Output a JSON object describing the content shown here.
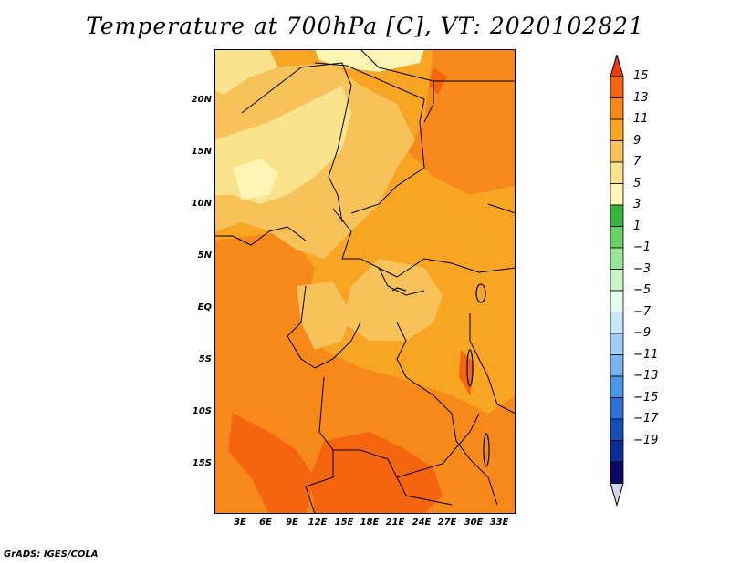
{
  "title": "Temperature at 700hPa [C], VT: 2020102821",
  "footer": "GrADS: IGES/COLA",
  "map": {
    "lat_labels": [
      "20N",
      "15N",
      "10N",
      "5N",
      "EQ",
      "5S",
      "10S",
      "15S"
    ],
    "lon_labels": [
      "3E",
      "6E",
      "9E",
      "12E",
      "15E",
      "18E",
      "21E",
      "24E",
      "27E",
      "30E",
      "33E"
    ],
    "lat_values": [
      20,
      15,
      10,
      5,
      0,
      -5,
      -10,
      -15
    ],
    "lon_values": [
      3,
      6,
      9,
      12,
      15,
      18,
      21,
      24,
      27,
      30,
      33
    ]
  },
  "colorbar": {
    "labels": [
      "15",
      "13",
      "11",
      "9",
      "7",
      "5",
      "3",
      "1",
      "−1",
      "−3",
      "−5",
      "−7",
      "−9",
      "−11",
      "−13",
      "−15",
      "−17",
      "−19"
    ],
    "colors": [
      "#f03c0a",
      "#f5640f",
      "#f7881a",
      "#f7a523",
      "#f7c25a",
      "#fae38c",
      "#fff5b4",
      "#37b43c",
      "#64d264",
      "#96e696",
      "#c8f5c8",
      "#e6faf0",
      "#c8e6fa",
      "#a0cdf5",
      "#78b4f0",
      "#4b96e6",
      "#2d73d7",
      "#1450b4",
      "#0a2d96",
      "#0a0a64",
      "#d2d2f5"
    ]
  },
  "colors": {
    "t7": "#f7c25a",
    "t9": "#f7a523",
    "t11": "#f7881a",
    "t13": "#f5640f",
    "t5": "#fae38c",
    "t3": "#fff5b4",
    "border": "#000000"
  }
}
